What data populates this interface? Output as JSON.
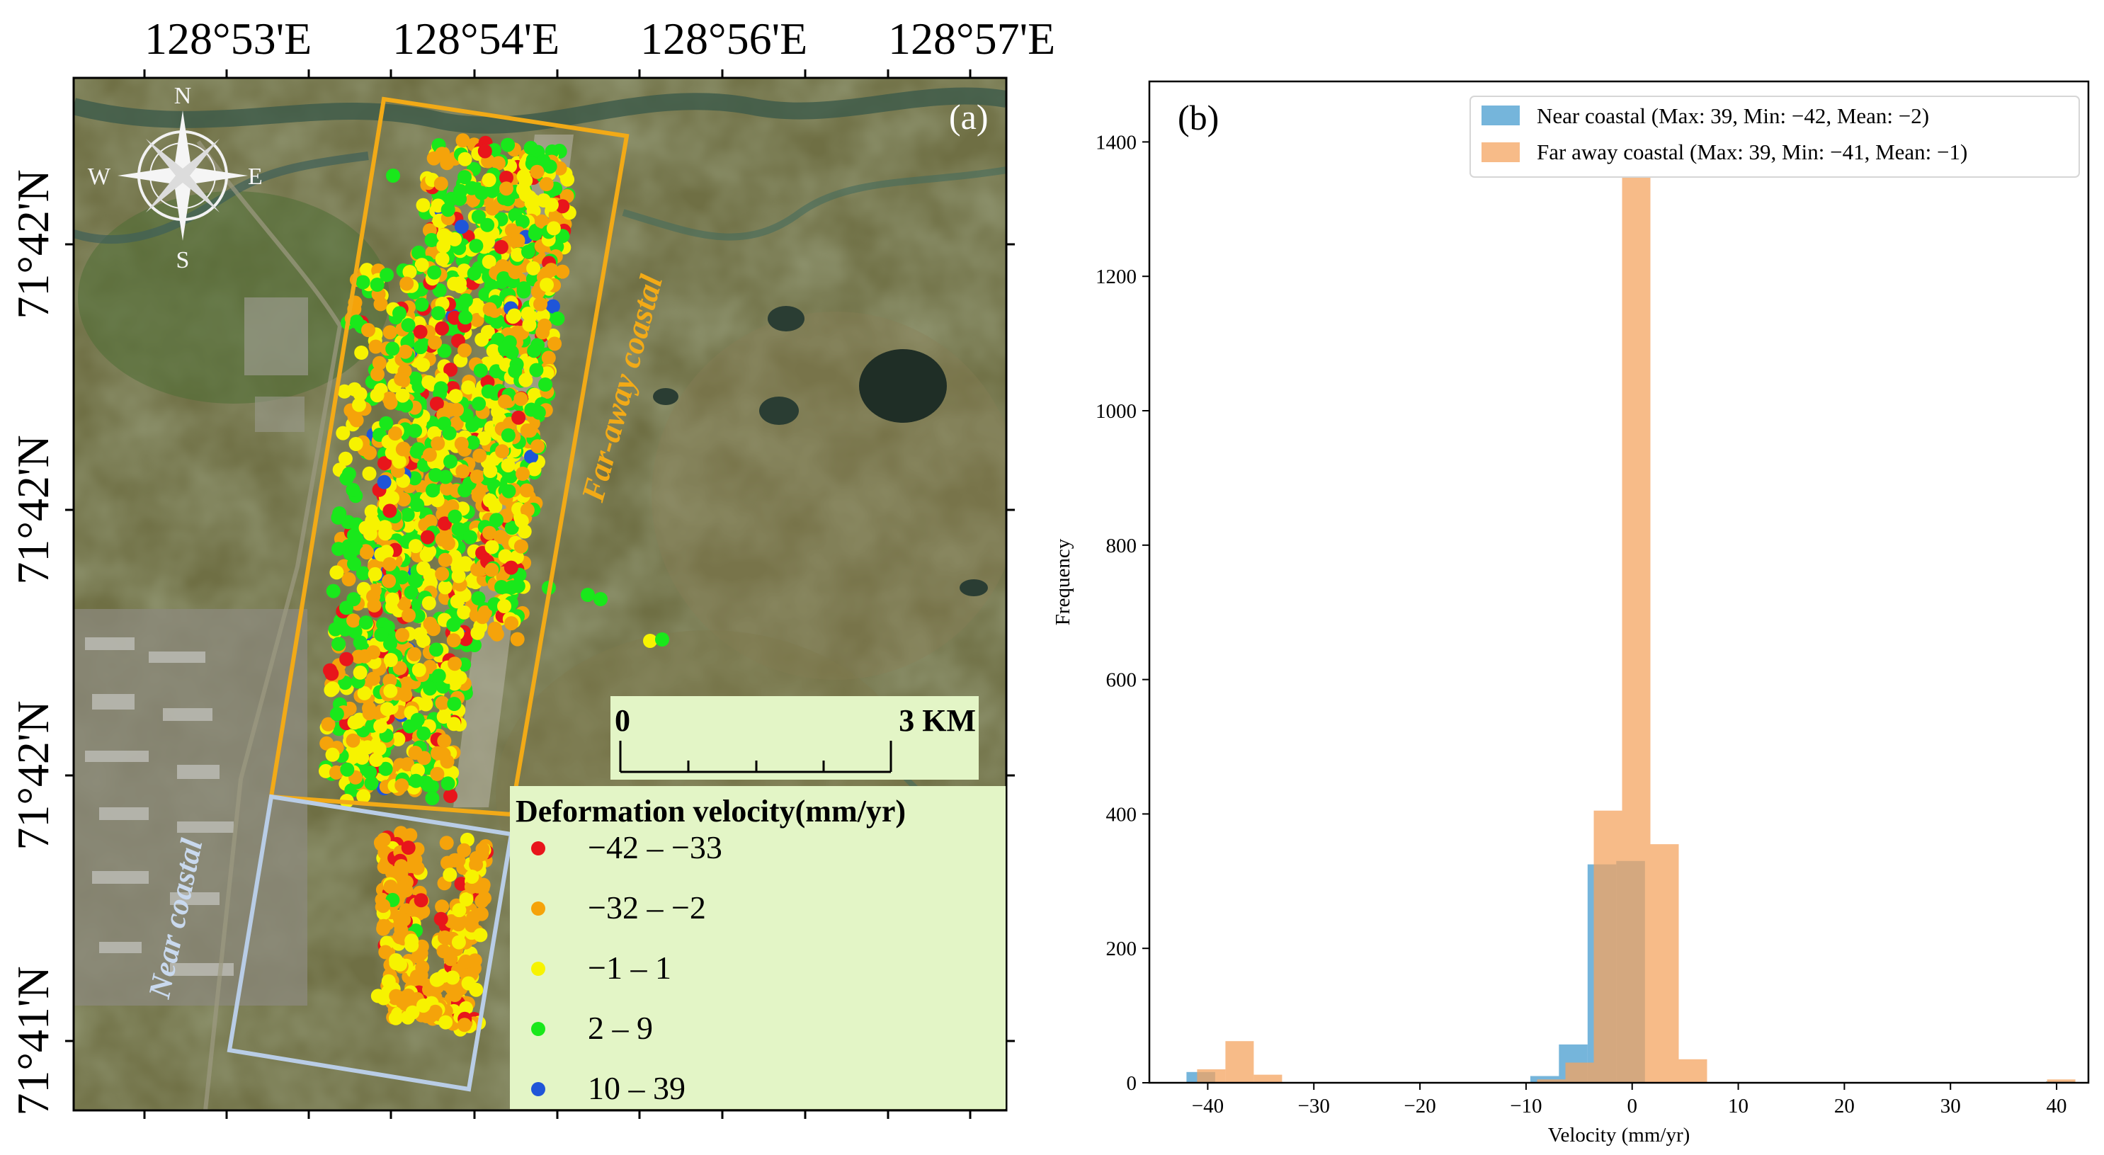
{
  "panel_a": {
    "label": "(a)",
    "lon_labels": [
      "128°53'E",
      "128°54'E",
      "128°56'E",
      "128°57'E"
    ],
    "lat_labels": [
      "71°42'N",
      "71°42'N",
      "71°42'N",
      "71°41'N"
    ],
    "compass": {
      "n": "N",
      "s": "S",
      "e": "E",
      "w": "W"
    },
    "region_far": "Far-away coastal",
    "region_near": "Near coastal",
    "scale_bar": {
      "start": "0",
      "end": "3 KM"
    },
    "legend": {
      "title": "Deformation velocity(mm/yr)",
      "items": [
        {
          "label": "−42 – −33",
          "color": "#e8151b"
        },
        {
          "label": "−32 – −2",
          "color": "#f5a30a"
        },
        {
          "label": "−1 – 1",
          "color": "#f7f300"
        },
        {
          "label": "2 – 9",
          "color": "#19e81b"
        },
        {
          "label": "10 – 39",
          "color": "#1f55d8"
        }
      ]
    },
    "colors": {
      "far_box": "#f2aa17",
      "near_box": "#b9cde6",
      "legend_bg": "#e3f5c6"
    }
  },
  "chart_data": {
    "type": "histogram",
    "label": "(b)",
    "xlabel": "Velocity (mm/yr)",
    "ylabel": "Frequency",
    "xlim": [
      -45.5,
      43
    ],
    "ylim": [
      0,
      1490
    ],
    "xticks": [
      -40,
      -30,
      -20,
      -10,
      0,
      10,
      20,
      30,
      40
    ],
    "yticks": [
      0,
      200,
      400,
      600,
      800,
      1000,
      1200,
      1400
    ],
    "series": [
      {
        "name": "Near coastal (Max: 39, Min: −42, Mean: −2)",
        "color": "#3a95cc",
        "alpha": 0.7,
        "bin_start": -42,
        "bin_width": 2.7,
        "values": [
          16,
          0,
          0,
          0,
          0,
          0,
          0,
          0,
          0,
          0,
          0,
          0,
          10,
          57,
          325,
          330,
          0,
          0,
          0,
          0,
          0,
          0,
          0,
          0,
          0,
          0,
          0,
          0,
          0,
          0,
          2
        ]
      },
      {
        "name": "Far away coastal (Max: 39, Min: −41, Mean: −1)",
        "color": "#f4a460",
        "alpha": 0.75,
        "bin_start": -41,
        "bin_width": 2.67,
        "values": [
          20,
          62,
          12,
          0,
          0,
          0,
          0,
          0,
          0,
          0,
          0,
          0,
          5,
          30,
          405,
          1420,
          355,
          35,
          0,
          0,
          0,
          0,
          0,
          0,
          0,
          0,
          0,
          0,
          0,
          0,
          5
        ]
      }
    ]
  }
}
